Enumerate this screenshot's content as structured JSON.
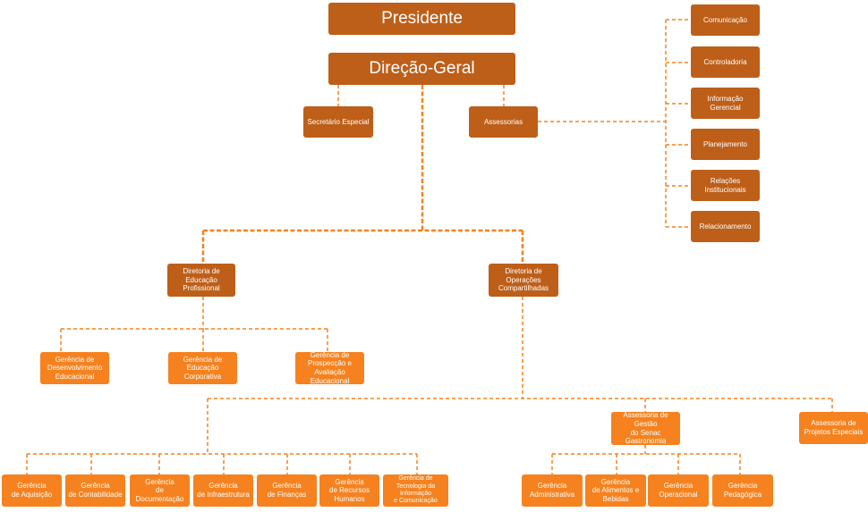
{
  "colors": {
    "dark_box": "#bd5f19",
    "light_box": "#f5821f",
    "connector": "#f5821f",
    "text": "#ffffff"
  },
  "nodes": {
    "presidente": "Presidente",
    "direcao_geral": "Direção-Geral",
    "secretario_especial": "Secretário Especial",
    "assessorias": "Assessorias",
    "comunicacao": "Comunicação",
    "controladoria": "Controladoria",
    "informacao_gerencial": "Informação\nGerencial",
    "planejamento": "Planejamento",
    "relacoes_institucionais": "Relações\nInstitucionais",
    "relacionamento": "Relacionamento",
    "diretoria_educacao": "Diretoria de\nEducação Profissional",
    "diretoria_operacoes": "Diretoria de Operações\nCompartilhadas",
    "ger_desenvolvimento": "Gerência de\nDesenvolvimento\nEducacional",
    "ger_educacao_corporativa": "Gerência de Educação\nCorporativa",
    "ger_prospeccao": "Gerência de\nProspecção e Avaliação\nEducacional",
    "assessoria_gastronomia": "Assessoria de Gestão\ndo Senac Gastronomia",
    "assessoria_projetos": "Assessoria de\nProjetos Especiais",
    "ger_aquisicao": "Gerência\nde Aquisição",
    "ger_contabilidade": "Gerência\nde Contabilidade",
    "ger_documentacao": "Gerência\nde Documentação",
    "ger_infraestrutura": "Gerência\nde Infraestrutura",
    "ger_financas": "Gerência\nde Finanças",
    "ger_recursos_humanos": "Gerência\nde Recursos\nHumanos",
    "ger_tecnologia": "Gerência de\nTecnologia da Informação\ne Comunicação",
    "ger_administrativa": "Gerência\nAdministrativa",
    "ger_alimentos": "Gerência\nde Alimentos e\nBebidas",
    "ger_operacional": "Gerência\nOperacional",
    "ger_pedagogica": "Gerência\nPedagógica"
  }
}
